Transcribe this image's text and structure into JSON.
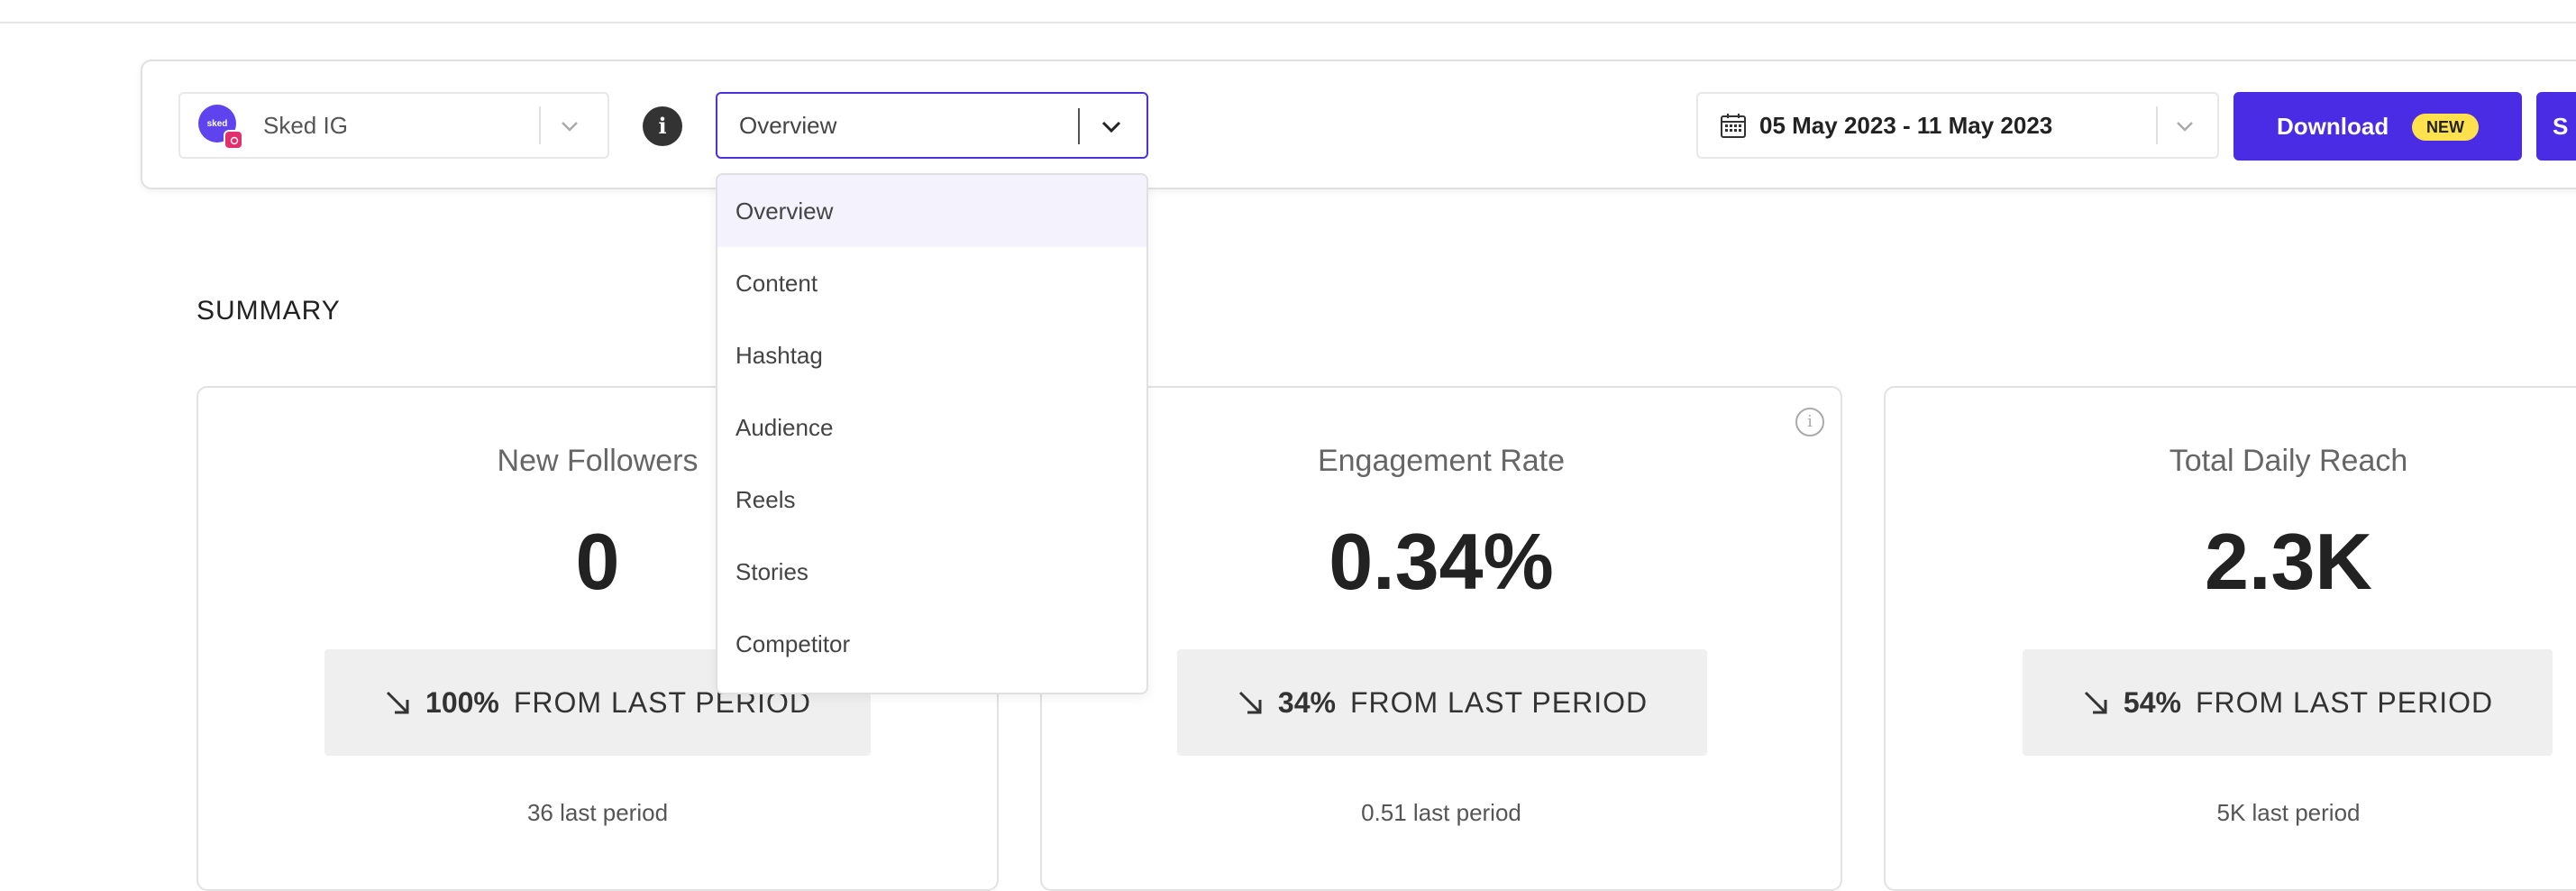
{
  "toolbar": {
    "account": {
      "name": "Sked IG",
      "avatar_text": "sked"
    },
    "info_icon": "i",
    "report_select": {
      "value": "Overview"
    },
    "report_menu": [
      {
        "label": "Overview",
        "selected": true
      },
      {
        "label": "Content"
      },
      {
        "label": "Hashtag"
      },
      {
        "label": "Audience"
      },
      {
        "label": "Reels"
      },
      {
        "label": "Stories"
      },
      {
        "label": "Competitor"
      }
    ],
    "date_range": "05 May 2023 - 11 May 2023",
    "download": {
      "label": "Download",
      "badge": "NEW"
    },
    "next_button_label": "S"
  },
  "summary": {
    "title": "SUMMARY",
    "cards": [
      {
        "title": "New Followers",
        "value": "0",
        "change_pct": "100%",
        "change_text": "FROM LAST PERIOD",
        "previous": "36 last period"
      },
      {
        "title": "Engagement Rate",
        "value": "0.34%",
        "change_pct": "34%",
        "change_text": "FROM LAST PERIOD",
        "previous": "0.51 last period",
        "info_icon": "i"
      },
      {
        "title": "Total Daily Reach",
        "value": "2.3K",
        "change_pct": "54%",
        "change_text": "FROM LAST PERIOD",
        "previous": "5K last period"
      }
    ]
  },
  "colors": {
    "accent": "#4b2ce5",
    "badge": "#ffe14d",
    "change_bg": "#efefef"
  },
  "icons": [
    "chevron-down-icon",
    "info-icon",
    "calendar-icon",
    "arrow-down-right-icon",
    "instagram-icon"
  ]
}
